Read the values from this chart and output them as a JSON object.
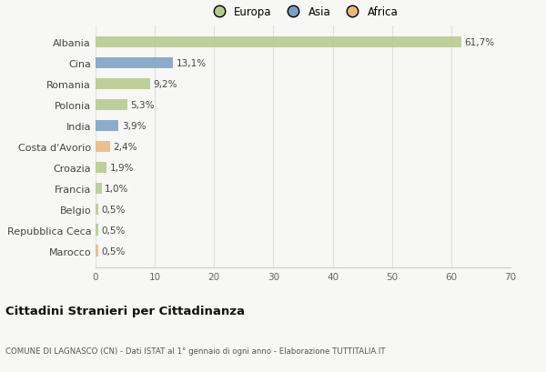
{
  "categories": [
    "Albania",
    "Cina",
    "Romania",
    "Polonia",
    "India",
    "Costa d'Avorio",
    "Croazia",
    "Francia",
    "Belgio",
    "Repubblica Ceca",
    "Marocco"
  ],
  "values": [
    61.7,
    13.1,
    9.2,
    5.3,
    3.9,
    2.4,
    1.9,
    1.0,
    0.5,
    0.5,
    0.5
  ],
  "labels": [
    "61,7%",
    "13,1%",
    "9,2%",
    "5,3%",
    "3,9%",
    "2,4%",
    "1,9%",
    "1,0%",
    "0,5%",
    "0,5%",
    "0,5%"
  ],
  "continents": [
    "Europa",
    "Asia",
    "Europa",
    "Europa",
    "Asia",
    "Africa",
    "Europa",
    "Europa",
    "Europa",
    "Europa",
    "Africa"
  ],
  "colors": {
    "Europa": "#b5c98a",
    "Asia": "#7a9fc4",
    "Africa": "#e8b87a"
  },
  "legend_labels": [
    "Europa",
    "Asia",
    "Africa"
  ],
  "legend_colors": [
    "#b5c98a",
    "#7a9fc4",
    "#e8b87a"
  ],
  "xlim": [
    0,
    70
  ],
  "xticks": [
    0,
    10,
    20,
    30,
    40,
    50,
    60,
    70
  ],
  "title": "Cittadini Stranieri per Cittadinanza",
  "subtitle": "COMUNE DI LAGNASCO (CN) - Dati ISTAT al 1° gennaio di ogni anno - Elaborazione TUTTITALIA.IT",
  "bg_color": "#f7f7f5",
  "grid_color": "#e0e0e0",
  "bar_height": 0.55
}
